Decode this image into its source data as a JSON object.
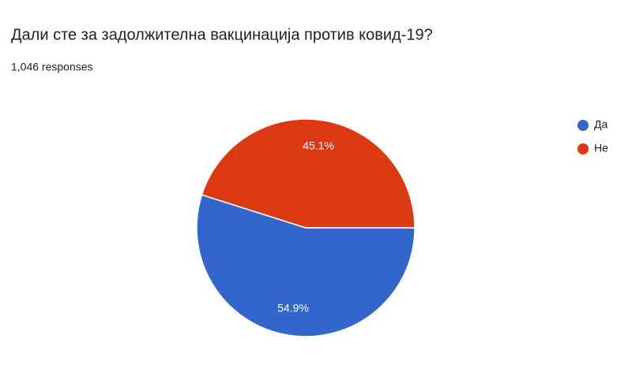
{
  "chart_data": {
    "type": "pie",
    "title": "Дали сте за задолжителна вакцинација против ковид-19?",
    "subtitle": "1,046 responses",
    "categories": [
      "Да",
      "Не"
    ],
    "values": [
      54.9,
      45.1
    ],
    "value_labels": [
      "54.9%",
      "45.1%"
    ],
    "colors": [
      "#3366cc",
      "#dc3912"
    ],
    "legend": "right"
  }
}
